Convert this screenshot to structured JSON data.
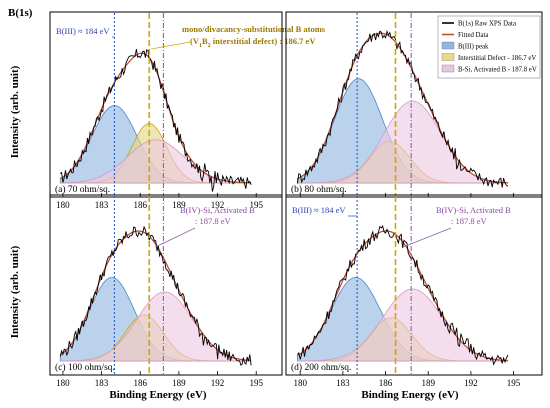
{
  "figure": {
    "title": "B(1s)",
    "ylabel": "Intensity (arb. unit)",
    "xlabel": "Binding Energy (eV)"
  },
  "legend": {
    "position": "top-right of panel (b)",
    "entries": [
      {
        "label": "B(1s) Raw XPS Data",
        "kind": "line",
        "color": "#000000"
      },
      {
        "label": "Fitted Data",
        "kind": "line",
        "color": "#b5542a"
      },
      {
        "label": "B(III) peak",
        "kind": "fill",
        "color": "#8fb7e0"
      },
      {
        "label": "Interstitial Defect - 186.7 eV",
        "kind": "fill",
        "color": "#e8dc8c"
      },
      {
        "label": "B-Si, Activated B - 187.8 eV",
        "kind": "fill",
        "color": "#ecc4e0"
      }
    ]
  },
  "colors": {
    "biii_fill": "#8fb7e0",
    "biii_line": "#4a86c8",
    "inter_fill": "#e4d683",
    "inter_line": "#c9a21a",
    "bsi_fill": "#eec8e2",
    "bsi_line": "#d49ac0",
    "raw": "#000000",
    "fit": "#c0503a",
    "vline_blue": "#2d5fd0",
    "vline_gold": "#d4a600",
    "vline_purple": "#9060b0"
  },
  "chart_data": [
    {
      "type": "line",
      "panel": "a",
      "label": "(a) 70 ohm/sq.",
      "xlim": [
        179,
        197
      ],
      "xticks": [
        180,
        183,
        186,
        189,
        192,
        195
      ],
      "xreverse": false,
      "peaks": [
        {
          "name": "B(III) peak",
          "center": 184.0,
          "amp": 0.52,
          "sigma": 1.75
        },
        {
          "name": "Interstitial Defect - 186.7 eV",
          "center": 186.7,
          "amp": 0.4,
          "sigma": 1.35
        },
        {
          "name": "B-Si, Activated B - 187.8 eV",
          "center": 187.2,
          "amp": 0.29,
          "sigma": 2.2
        }
      ],
      "vlines": [
        184.0,
        186.7,
        187.8
      ],
      "annotations": [
        {
          "text": "B(III) ≈ 184 eV",
          "style": "blue"
        },
        {
          "text": "mono/divacancy-substitutional B atoms",
          "style": "gold"
        },
        {
          "text": "(V1B2 interstitial defect) : 186.7 eV",
          "style": "gold"
        }
      ]
    },
    {
      "type": "line",
      "panel": "b",
      "label": "(b) 80 ohm/sq.",
      "xlim": [
        179,
        197
      ],
      "xticks": [],
      "xreverse": false,
      "peaks": [
        {
          "name": "B(III) peak",
          "center": 184.1,
          "amp": 0.7,
          "sigma": 1.7
        },
        {
          "name": "Interstitial Defect - 186.7 eV",
          "center": 186.3,
          "amp": 0.28,
          "sigma": 1.4
        },
        {
          "name": "B-Si, Activated B - 187.8 eV",
          "center": 187.9,
          "amp": 0.55,
          "sigma": 2.0
        }
      ],
      "vlines": [
        184.0,
        186.7,
        187.8
      ],
      "annotations": []
    },
    {
      "type": "line",
      "panel": "c",
      "label": "(c) 100 ohm/sq.",
      "xlim": [
        179,
        197
      ],
      "xticks": [
        180,
        183,
        186,
        189,
        192,
        195
      ],
      "xreverse": false,
      "peaks": [
        {
          "name": "B(III) peak",
          "center": 183.8,
          "amp": 0.58,
          "sigma": 1.75
        },
        {
          "name": "Interstitial Defect - 186.7 eV",
          "center": 186.3,
          "amp": 0.32,
          "sigma": 1.5
        },
        {
          "name": "B-Si, Activated B - 187.8 eV",
          "center": 187.9,
          "amp": 0.48,
          "sigma": 2.15
        }
      ],
      "vlines": [
        184.0,
        186.7,
        187.8
      ],
      "annotations": [
        {
          "text": "B(IV)-Si, Activated B",
          "style": "purple"
        },
        {
          "text": ": 187.8 eV",
          "style": "purple"
        }
      ]
    },
    {
      "type": "line",
      "panel": "d",
      "label": "(d) 200 ohm/sq.",
      "xlim": [
        179,
        197
      ],
      "xticks": [
        180,
        183,
        186,
        189,
        192,
        195
      ],
      "xreverse": false,
      "peaks": [
        {
          "name": "B(III) peak",
          "center": 183.9,
          "amp": 0.58,
          "sigma": 1.75
        },
        {
          "name": "Interstitial Defect - 186.7 eV",
          "center": 186.4,
          "amp": 0.3,
          "sigma": 1.45
        },
        {
          "name": "B-Si, Activated B - 187.8 eV",
          "center": 187.9,
          "amp": 0.5,
          "sigma": 2.1
        }
      ],
      "vlines": [
        184.0,
        186.7,
        187.8
      ],
      "annotations": [
        {
          "text": "B(III) ≈ 184 eV",
          "style": "blue"
        },
        {
          "text": "B(IV)-Si, Activated B",
          "style": "purple"
        },
        {
          "text": ": 187.8 eV",
          "style": "purple"
        }
      ]
    }
  ]
}
